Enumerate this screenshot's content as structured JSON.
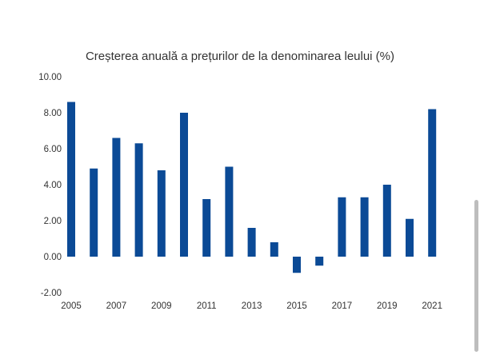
{
  "chart_data": {
    "type": "bar",
    "title": "Creșterea anuală a prețurilor de la denominarea leului (%)",
    "xlabel": "",
    "ylabel": "",
    "categories": [
      "2005",
      "2006",
      "2007",
      "2008",
      "2009",
      "2010",
      "2011",
      "2012",
      "2013",
      "2014",
      "2015",
      "2016",
      "2017",
      "2018",
      "2019",
      "2020",
      "2021"
    ],
    "values": [
      8.6,
      4.9,
      6.6,
      6.3,
      4.8,
      8.0,
      3.2,
      5.0,
      1.6,
      0.8,
      -0.9,
      -0.5,
      3.3,
      3.3,
      4.0,
      2.1,
      8.2
    ],
    "x_tick_labels": [
      "2005",
      "2007",
      "2009",
      "2011",
      "2013",
      "2015",
      "2017",
      "2019",
      "2021"
    ],
    "y_tick_labels": [
      "10.00",
      "8.00",
      "6.00",
      "4.00",
      "2.00",
      "0.00",
      "-2.00"
    ],
    "ylim": [
      -2,
      10
    ],
    "grid": false,
    "legend": "none",
    "bar_color": "#0b4a96"
  }
}
